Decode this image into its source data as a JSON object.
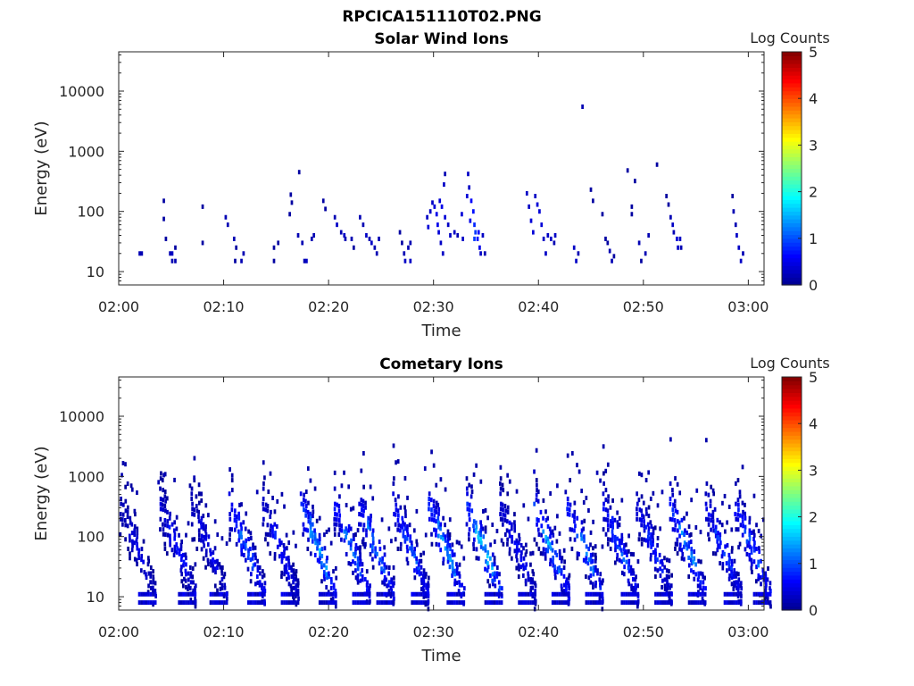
{
  "figure_title": "RPCICA151110T02.PNG",
  "colors": {
    "axis": "#262626",
    "colormap": [
      "#00008f",
      "#0000ff",
      "#0080ff",
      "#00ffff",
      "#80ff80",
      "#ffff00",
      "#ff8000",
      "#ff0000",
      "#800000"
    ]
  },
  "chart_data": [
    {
      "type": "heatmap",
      "title": "Solar Wind Ions",
      "xlabel": "Time",
      "ylabel": "Energy (eV)",
      "x_ticks": [
        "02:00",
        "02:10",
        "02:20",
        "02:30",
        "02:40",
        "02:50",
        "03:00"
      ],
      "y_ticks": [
        "10",
        "100",
        "1000",
        "10000"
      ],
      "y_scale": "log",
      "xlim_minutes": [
        0,
        61.5
      ],
      "ylim_eV": [
        6,
        45000
      ],
      "colorbar": {
        "label": "Log Counts",
        "ticks": [
          "0",
          "1",
          "2",
          "3",
          "4",
          "5"
        ],
        "range": [
          0,
          5
        ]
      },
      "cells": [
        [
          2,
          20,
          0.2
        ],
        [
          2.2,
          20,
          0.2
        ],
        [
          4.9,
          20,
          0.2
        ],
        [
          5.1,
          20,
          0.3
        ],
        [
          5.1,
          15,
          0.2
        ],
        [
          5.4,
          15,
          0.2
        ],
        [
          5.4,
          25,
          0.1
        ],
        [
          4.3,
          75,
          0.1
        ],
        [
          4.5,
          35,
          0.1
        ],
        [
          4.3,
          150,
          0.1
        ],
        [
          8,
          120,
          0.1
        ],
        [
          8,
          30,
          0.1
        ],
        [
          10.2,
          80,
          0.2
        ],
        [
          10.4,
          60,
          0.2
        ],
        [
          11,
          35,
          0.2
        ],
        [
          11.2,
          25,
          0.1
        ],
        [
          11.1,
          15,
          0.1
        ],
        [
          11.7,
          15,
          0.2
        ],
        [
          11.9,
          20,
          0.2
        ],
        [
          14.8,
          15,
          0.1
        ],
        [
          14.8,
          25,
          0.1
        ],
        [
          15.2,
          30,
          0.1
        ],
        [
          16.4,
          190,
          0.1
        ],
        [
          16.5,
          140,
          0.1
        ],
        [
          16.3,
          90,
          0.1
        ],
        [
          17.2,
          450,
          0.1
        ],
        [
          17.1,
          40,
          0.2
        ],
        [
          17.5,
          30,
          0.2
        ],
        [
          17.7,
          15,
          0.2
        ],
        [
          17.9,
          15,
          0.3
        ],
        [
          18.4,
          35,
          0.2
        ],
        [
          18.6,
          40,
          0.2
        ],
        [
          19.5,
          150,
          0.1
        ],
        [
          19.7,
          110,
          0.1
        ],
        [
          20.6,
          80,
          0.2
        ],
        [
          20.8,
          60,
          0.3
        ],
        [
          21.2,
          45,
          0.2
        ],
        [
          21.5,
          40,
          0.3
        ],
        [
          21.6,
          35,
          0.2
        ],
        [
          22.2,
          35,
          0.2
        ],
        [
          22.4,
          25,
          0.1
        ],
        [
          23,
          80,
          0.2
        ],
        [
          23.3,
          60,
          0.2
        ],
        [
          23.6,
          40,
          0.3
        ],
        [
          23.9,
          35,
          0.2
        ],
        [
          24.1,
          30,
          0.3
        ],
        [
          24.4,
          25,
          0.2
        ],
        [
          24.6,
          20,
          0.2
        ],
        [
          24.8,
          35,
          0.2
        ],
        [
          26.8,
          45,
          0.1
        ],
        [
          27,
          30,
          0.1
        ],
        [
          27.2,
          20,
          0.2
        ],
        [
          27.3,
          15,
          0.3
        ],
        [
          27.6,
          25,
          0.2
        ],
        [
          27.8,
          15,
          0.3
        ],
        [
          27.8,
          30,
          0.2
        ],
        [
          29.4,
          80,
          0.3
        ],
        [
          29.5,
          55,
          0.4
        ],
        [
          29.7,
          100,
          0.3
        ],
        [
          29.9,
          140,
          0.3
        ],
        [
          30.1,
          120,
          0.4
        ],
        [
          30.3,
          90,
          0.5
        ],
        [
          30.4,
          60,
          0.5
        ],
        [
          30.5,
          45,
          0.4
        ],
        [
          30.7,
          30,
          0.3
        ],
        [
          30.9,
          20,
          0.3
        ],
        [
          30.6,
          150,
          0.4
        ],
        [
          30.8,
          120,
          0.5
        ],
        [
          31.1,
          80,
          0.4
        ],
        [
          31,
          280,
          0.3
        ],
        [
          31.1,
          420,
          0.2
        ],
        [
          31.4,
          60,
          0.3
        ],
        [
          31.6,
          40,
          0.3
        ],
        [
          32,
          45,
          0.3
        ],
        [
          32.3,
          40,
          0.2
        ],
        [
          32.8,
          35,
          0.3
        ],
        [
          33.2,
          180,
          0.4
        ],
        [
          33.4,
          250,
          0.3
        ],
        [
          33.6,
          150,
          0.6
        ],
        [
          33.8,
          100,
          0.7
        ],
        [
          33.9,
          60,
          0.8
        ],
        [
          34,
          45,
          0.9
        ],
        [
          34.2,
          35,
          0.7
        ],
        [
          34.4,
          25,
          0.5
        ],
        [
          34.5,
          20,
          0.3
        ],
        [
          33.3,
          420,
          0.3
        ],
        [
          33.9,
          35,
          0.9
        ],
        [
          34.3,
          45,
          0.6
        ],
        [
          34.7,
          40,
          0.3
        ],
        [
          34.9,
          20,
          0.2
        ],
        [
          33.5,
          70,
          0.5
        ],
        [
          32.7,
          90,
          0.4
        ],
        [
          38.9,
          200,
          0.3
        ],
        [
          39.1,
          120,
          0.3
        ],
        [
          39.3,
          70,
          0.4
        ],
        [
          39.5,
          45,
          0.4
        ],
        [
          39.7,
          180,
          0.3
        ],
        [
          39.9,
          130,
          0.4
        ],
        [
          40.1,
          100,
          0.4
        ],
        [
          40.3,
          60,
          0.4
        ],
        [
          40.5,
          35,
          0.3
        ],
        [
          40.7,
          20,
          0.3
        ],
        [
          40.9,
          40,
          0.3
        ],
        [
          41.2,
          35,
          0.3
        ],
        [
          41.5,
          30,
          0.2
        ],
        [
          41.6,
          40,
          0.3
        ],
        [
          43.4,
          25,
          0.3
        ],
        [
          43.6,
          15,
          0.3
        ],
        [
          43.8,
          20,
          0.2
        ],
        [
          44.2,
          5500,
          0.2
        ],
        [
          45,
          230,
          0.1
        ],
        [
          45.2,
          150,
          0.1
        ],
        [
          46.4,
          35,
          0.1
        ],
        [
          46.6,
          30,
          0.1
        ],
        [
          46.8,
          22,
          0.2
        ],
        [
          47,
          15,
          0.2
        ],
        [
          47.2,
          18,
          0.1
        ],
        [
          46.1,
          90,
          0.1
        ],
        [
          48.5,
          480,
          0.1
        ],
        [
          49.2,
          320,
          0.1
        ],
        [
          48.9,
          120,
          0.1
        ],
        [
          48.9,
          90,
          0.1
        ],
        [
          49.6,
          30,
          0.2
        ],
        [
          49.8,
          15,
          0.1
        ],
        [
          50.2,
          20,
          0.2
        ],
        [
          50.5,
          40,
          0.2
        ],
        [
          51.3,
          600,
          0.1
        ],
        [
          52.2,
          180,
          0.1
        ],
        [
          52.4,
          130,
          0.1
        ],
        [
          52.6,
          80,
          0.2
        ],
        [
          52.8,
          60,
          0.3
        ],
        [
          52.9,
          45,
          0.2
        ],
        [
          53.2,
          35,
          0.4
        ],
        [
          53.3,
          25,
          0.3
        ],
        [
          53.5,
          35,
          0.3
        ],
        [
          53.6,
          25,
          0.2
        ],
        [
          58.5,
          180,
          0.1
        ],
        [
          58.6,
          100,
          0.2
        ],
        [
          58.8,
          60,
          0.2
        ],
        [
          58.9,
          40,
          0.3
        ],
        [
          59.1,
          25,
          0.3
        ],
        [
          59.3,
          15,
          0.3
        ],
        [
          59.5,
          20,
          0.2
        ]
      ]
    },
    {
      "type": "heatmap",
      "title": "Cometary Ions",
      "xlabel": "Time",
      "ylabel": "Energy (eV)",
      "x_ticks": [
        "02:00",
        "02:10",
        "02:20",
        "02:30",
        "02:40",
        "02:50",
        "03:00"
      ],
      "y_ticks": [
        "10",
        "100",
        "1000",
        "10000"
      ],
      "y_scale": "log",
      "xlim_minutes": [
        0,
        61.5
      ],
      "ylim_eV": [
        6,
        45000
      ],
      "colorbar": {
        "label": "Log Counts",
        "ticks": [
          "0",
          "1",
          "2",
          "3",
          "4",
          "5"
        ],
        "range": [
          0,
          5
        ]
      },
      "bursts": [
        {
          "t": 0.2,
          "peak": 0.6
        },
        {
          "t": 4.0,
          "peak": 0.9
        },
        {
          "t": 7.0,
          "peak": 0.7
        },
        {
          "t": 10.6,
          "peak": 1.4
        },
        {
          "t": 13.8,
          "peak": 0.9
        },
        {
          "t": 17.4,
          "peak": 1.8
        },
        {
          "t": 20.6,
          "peak": 1.4
        },
        {
          "t": 22.9,
          "peak": 1.5
        },
        {
          "t": 26.2,
          "peak": 1.3
        },
        {
          "t": 29.6,
          "peak": 1.7
        },
        {
          "t": 33.2,
          "peak": 2.0
        },
        {
          "t": 36.4,
          "peak": 0.8
        },
        {
          "t": 39.6,
          "peak": 1.8
        },
        {
          "t": 42.8,
          "peak": 1.5
        },
        {
          "t": 46.2,
          "peak": 1.3
        },
        {
          "t": 49.4,
          "peak": 1.0
        },
        {
          "t": 52.6,
          "peak": 1.6
        },
        {
          "t": 56.0,
          "peak": 1.1
        },
        {
          "t": 58.8,
          "peak": 1.4
        }
      ],
      "isolated_cells": [
        [
          0.3,
          1050,
          0.2
        ],
        [
          1.2,
          700,
          0.1
        ],
        [
          3.8,
          800,
          0.2
        ],
        [
          4.3,
          1050,
          0.2
        ],
        [
          7.2,
          950,
          0.2
        ],
        [
          6.8,
          700,
          0.1
        ],
        [
          13.9,
          950,
          0.1
        ],
        [
          13.2,
          550,
          0.2
        ],
        [
          29.2,
          1350,
          0.2
        ],
        [
          39.6,
          1200,
          0.3
        ],
        [
          41.8,
          700,
          0.2
        ],
        [
          42.6,
          550,
          0.2
        ],
        [
          45.6,
          1150,
          0.2
        ],
        [
          45.9,
          850,
          0.2
        ],
        [
          51.8,
          550,
          0.2
        ],
        [
          55.1,
          580,
          0.2
        ],
        [
          59.2,
          550,
          0.2
        ]
      ]
    }
  ]
}
